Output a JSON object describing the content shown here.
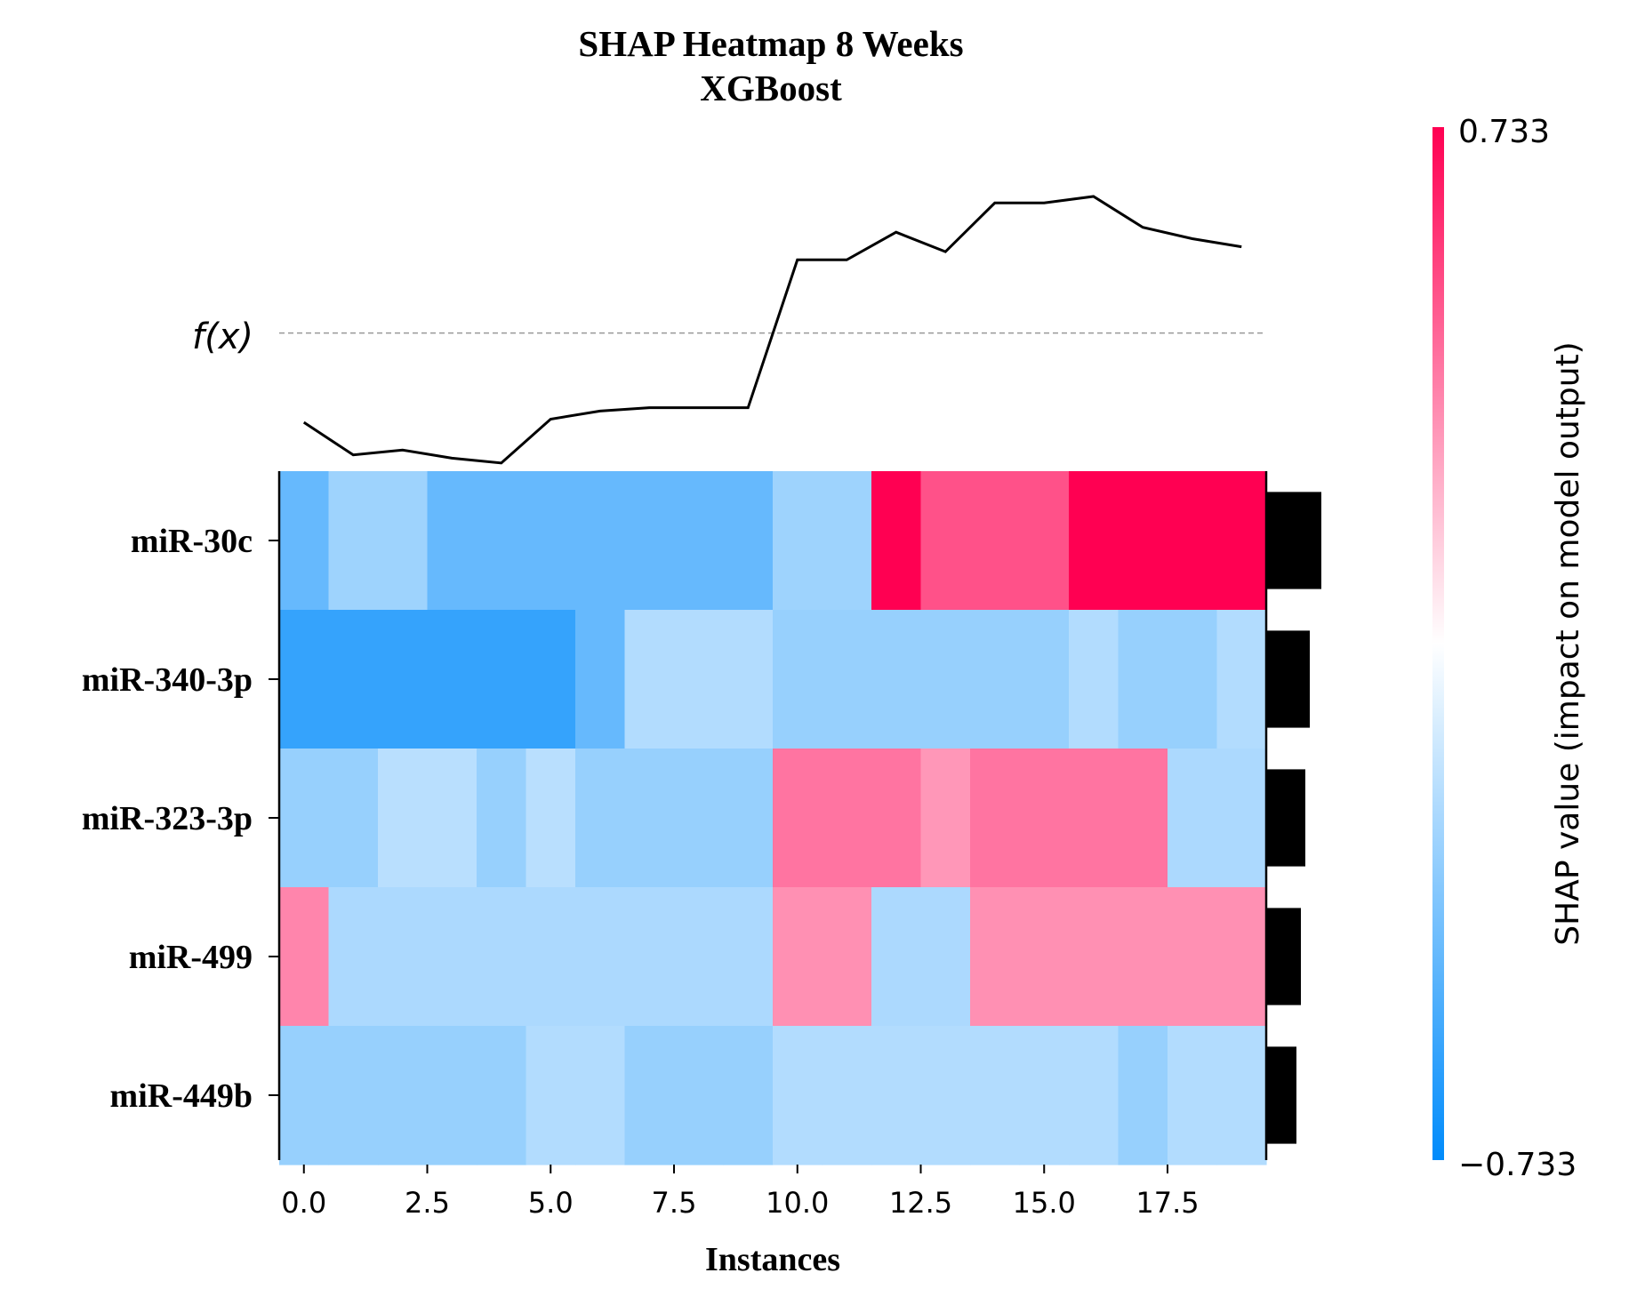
{
  "chart_data": {
    "type": "heatmap",
    "title": "SHAP Heatmap 8 Weeks",
    "subtitle": "XGBoost",
    "xlabel": "Instances",
    "x_ticks": [
      "0.0",
      "2.5",
      "5.0",
      "7.5",
      "10.0",
      "12.5",
      "15.0",
      "17.5"
    ],
    "x_tick_values": [
      0,
      2.5,
      5,
      7.5,
      10,
      12.5,
      15,
      17.5
    ],
    "xlim": [
      -0.5,
      19.5
    ],
    "fx_label": "f(x)",
    "fx_values": [
      -0.55,
      -0.75,
      -0.72,
      -0.77,
      -0.8,
      -0.53,
      -0.48,
      -0.46,
      -0.46,
      -0.46,
      0.45,
      0.45,
      0.62,
      0.5,
      0.8,
      0.8,
      0.84,
      0.65,
      0.58,
      0.53
    ],
    "fx_baseline": 0.0,
    "features": [
      {
        "name": "miR-30c",
        "importance": 0.62,
        "shap": [
          -0.44,
          -0.28,
          -0.28,
          -0.44,
          -0.44,
          -0.44,
          -0.44,
          -0.44,
          -0.44,
          -0.44,
          -0.28,
          -0.28,
          0.733,
          0.5,
          0.5,
          0.5,
          0.733,
          0.733,
          0.733,
          0.733
        ]
      },
      {
        "name": "miR-340-3p",
        "importance": 0.49,
        "shap": [
          -0.58,
          -0.58,
          -0.58,
          -0.58,
          -0.58,
          -0.58,
          -0.44,
          -0.22,
          -0.22,
          -0.22,
          -0.3,
          -0.3,
          -0.3,
          -0.3,
          -0.3,
          -0.3,
          -0.22,
          -0.3,
          -0.3,
          -0.22
        ]
      },
      {
        "name": "miR-323-3p",
        "importance": 0.44,
        "shap": [
          -0.3,
          -0.3,
          -0.2,
          -0.2,
          -0.3,
          -0.2,
          -0.3,
          -0.3,
          -0.3,
          -0.3,
          0.4,
          0.4,
          0.4,
          0.3,
          0.4,
          0.4,
          0.4,
          0.4,
          -0.24,
          -0.24
        ]
      },
      {
        "name": "miR-499",
        "importance": 0.39,
        "shap": [
          0.35,
          -0.24,
          -0.24,
          -0.24,
          -0.24,
          -0.24,
          -0.24,
          -0.24,
          -0.24,
          -0.24,
          0.32,
          0.32,
          -0.24,
          -0.24,
          0.32,
          0.32,
          0.32,
          0.32,
          0.32,
          0.32
        ]
      },
      {
        "name": "miR-449b",
        "importance": 0.34,
        "shap": [
          -0.3,
          -0.3,
          -0.3,
          -0.3,
          -0.3,
          -0.22,
          -0.22,
          -0.3,
          -0.3,
          -0.3,
          -0.22,
          -0.22,
          -0.22,
          -0.22,
          -0.22,
          -0.22,
          -0.22,
          -0.3,
          -0.22,
          -0.22
        ]
      }
    ],
    "colorbar": {
      "label": "SHAP value (impact on model output)",
      "max_label": "0.733",
      "min_label": "−0.733",
      "vmin": -0.733,
      "vmax": 0.733,
      "color_low": "#008bfb",
      "color_mid": "#ffffff",
      "color_high": "#ff0052"
    }
  }
}
